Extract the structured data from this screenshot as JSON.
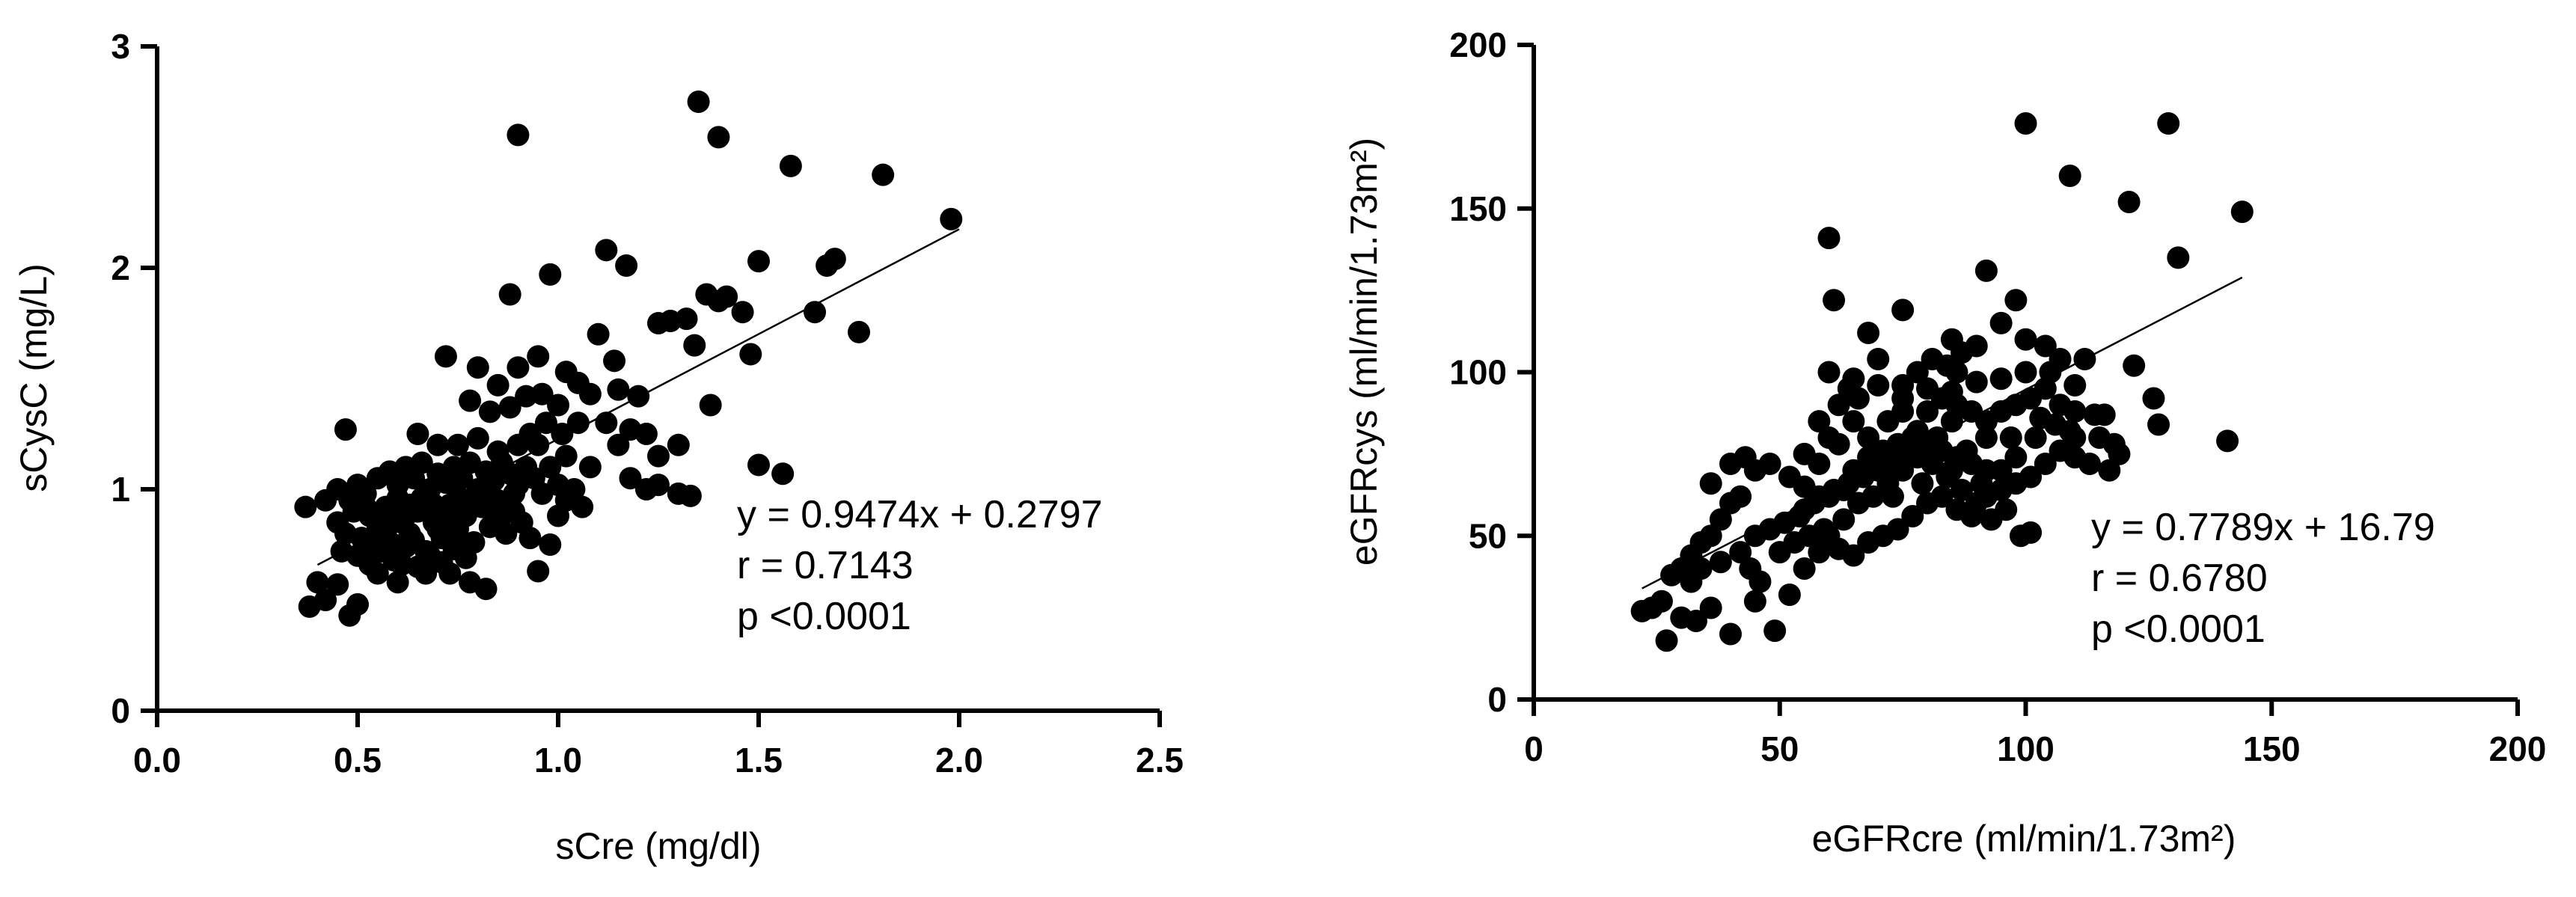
{
  "chart_data": [
    {
      "type": "scatter",
      "xlabel": "sCre (mg/dl)",
      "ylabel": "sCysC (mg/L)",
      "xlim": [
        0,
        2.5
      ],
      "ylim": [
        0,
        3
      ],
      "xticks": [
        "0.0",
        "0.5",
        "1.0",
        "1.5",
        "2.0",
        "2.5"
      ],
      "yticks": [
        "0",
        "1",
        "2",
        "3"
      ],
      "xtick_values": [
        0,
        0.5,
        1.0,
        1.5,
        2.0,
        2.5
      ],
      "ytick_values": [
        0,
        1,
        2,
        3
      ],
      "fit": {
        "slope": 0.9474,
        "intercept": 0.2797,
        "x_range": [
          0.4,
          2.0
        ]
      },
      "stats": [
        "y = 0.9474x + 0.2797",
        "r = 0.7143",
        "p <0.0001"
      ],
      "points": [
        [
          1.35,
          2.75
        ],
        [
          0.9,
          2.6
        ],
        [
          1.4,
          2.59
        ],
        [
          1.58,
          2.46
        ],
        [
          1.81,
          2.42
        ],
        [
          1.98,
          2.22
        ],
        [
          1.12,
          2.08
        ],
        [
          1.17,
          2.01
        ],
        [
          1.69,
          2.04
        ],
        [
          1.67,
          2.01
        ],
        [
          0.98,
          1.97
        ],
        [
          1.5,
          2.03
        ],
        [
          0.88,
          1.88
        ],
        [
          1.37,
          1.88
        ],
        [
          1.42,
          1.87
        ],
        [
          1.4,
          1.85
        ],
        [
          1.32,
          1.77
        ],
        [
          1.28,
          1.76
        ],
        [
          1.25,
          1.75
        ],
        [
          1.46,
          1.8
        ],
        [
          1.64,
          1.8
        ],
        [
          1.75,
          1.71
        ],
        [
          1.48,
          1.61
        ],
        [
          1.34,
          1.65
        ],
        [
          1.1,
          1.7
        ],
        [
          1.14,
          1.58
        ],
        [
          1.02,
          1.53
        ],
        [
          0.95,
          1.6
        ],
        [
          0.9,
          1.55
        ],
        [
          0.72,
          1.6
        ],
        [
          0.8,
          1.55
        ],
        [
          0.85,
          1.47
        ],
        [
          0.92,
          1.42
        ],
        [
          0.96,
          1.43
        ],
        [
          1.05,
          1.48
        ],
        [
          1.08,
          1.43
        ],
        [
          1.15,
          1.45
        ],
        [
          1.2,
          1.42
        ],
        [
          0.78,
          1.4
        ],
        [
          0.83,
          1.35
        ],
        [
          0.88,
          1.37
        ],
        [
          1.0,
          1.38
        ],
        [
          1.05,
          1.3
        ],
        [
          1.12,
          1.3
        ],
        [
          1.18,
          1.27
        ],
        [
          1.22,
          1.25
        ],
        [
          1.3,
          1.2
        ],
        [
          1.38,
          1.38
        ],
        [
          1.25,
          1.15
        ],
        [
          1.15,
          1.2
        ],
        [
          0.47,
          1.27
        ],
        [
          0.65,
          1.25
        ],
        [
          0.7,
          1.2
        ],
        [
          0.75,
          1.2
        ],
        [
          0.8,
          1.23
        ],
        [
          0.85,
          1.17
        ],
        [
          0.95,
          1.2
        ],
        [
          1.02,
          1.15
        ],
        [
          1.08,
          1.1
        ],
        [
          1.18,
          1.05
        ],
        [
          1.25,
          1.02
        ],
        [
          1.3,
          0.98
        ],
        [
          1.33,
          0.97
        ],
        [
          1.22,
          1.0
        ],
        [
          1.5,
          1.11
        ],
        [
          1.56,
          1.07
        ],
        [
          1.0,
          0.88
        ],
        [
          0.98,
          0.75
        ],
        [
          0.95,
          0.63
        ],
        [
          0.82,
          0.55
        ],
        [
          0.78,
          0.58
        ],
        [
          0.6,
          0.58
        ],
        [
          0.55,
          0.62
        ],
        [
          0.5,
          0.48
        ],
        [
          0.45,
          0.57
        ],
        [
          0.4,
          0.58
        ],
        [
          0.38,
          0.47
        ],
        [
          0.42,
          0.5
        ],
        [
          0.48,
          0.43
        ],
        [
          0.37,
          0.92
        ],
        [
          0.42,
          0.95
        ],
        [
          0.45,
          1.0
        ],
        [
          0.5,
          1.02
        ],
        [
          0.52,
          0.98
        ],
        [
          0.55,
          1.05
        ],
        [
          0.58,
          1.08
        ],
        [
          0.6,
          1.02
        ],
        [
          0.62,
          1.1
        ],
        [
          0.64,
          1.05
        ],
        [
          0.66,
          1.12
        ],
        [
          0.68,
          1.0
        ],
        [
          0.7,
          1.07
        ],
        [
          0.72,
          1.03
        ],
        [
          0.74,
          1.1
        ],
        [
          0.76,
          1.05
        ],
        [
          0.78,
          1.12
        ],
        [
          0.8,
          1.0
        ],
        [
          0.82,
          1.08
        ],
        [
          0.84,
          1.04
        ],
        [
          0.86,
          1.12
        ],
        [
          0.88,
          1.07
        ],
        [
          0.9,
          1.02
        ],
        [
          0.92,
          1.1
        ],
        [
          0.94,
          1.05
        ],
        [
          0.96,
          0.98
        ],
        [
          0.98,
          1.1
        ],
        [
          1.0,
          1.02
        ],
        [
          1.02,
          0.95
        ],
        [
          1.04,
          1.0
        ],
        [
          1.06,
          0.92
        ],
        [
          0.45,
          0.85
        ],
        [
          0.47,
          0.8
        ],
        [
          0.49,
          0.9
        ],
        [
          0.51,
          0.78
        ],
        [
          0.53,
          0.88
        ],
        [
          0.55,
          0.82
        ],
        [
          0.57,
          0.92
        ],
        [
          0.59,
          0.75
        ],
        [
          0.61,
          0.85
        ],
        [
          0.63,
          0.8
        ],
        [
          0.65,
          0.9
        ],
        [
          0.67,
          0.72
        ],
        [
          0.69,
          0.85
        ],
        [
          0.71,
          0.78
        ],
        [
          0.73,
          0.93
        ],
        [
          0.75,
          0.82
        ],
        [
          0.77,
          0.88
        ],
        [
          0.79,
          0.76
        ],
        [
          0.81,
          0.92
        ],
        [
          0.83,
          0.83
        ],
        [
          0.85,
          0.95
        ],
        [
          0.87,
          0.8
        ],
        [
          0.89,
          0.9
        ],
        [
          0.91,
          0.85
        ],
        [
          0.93,
          0.78
        ],
        [
          0.5,
          0.7
        ],
        [
          0.53,
          0.66
        ],
        [
          0.56,
          0.72
        ],
        [
          0.59,
          0.68
        ],
        [
          0.62,
          0.74
        ],
        [
          0.65,
          0.65
        ],
        [
          0.68,
          0.7
        ],
        [
          0.71,
          0.67
        ],
        [
          0.74,
          0.73
        ],
        [
          0.77,
          0.69
        ],
        [
          0.46,
          0.72
        ],
        [
          0.48,
          0.95
        ],
        [
          0.52,
          0.92
        ],
        [
          0.54,
          0.74
        ],
        [
          0.58,
          0.86
        ],
        [
          0.6,
          0.96
        ],
        [
          0.63,
          0.93
        ],
        [
          0.66,
          0.96
        ],
        [
          0.69,
          0.93
        ],
        [
          0.72,
          0.88
        ],
        [
          0.75,
          0.97
        ],
        [
          0.79,
          0.96
        ],
        [
          0.82,
          0.98
        ],
        [
          0.86,
          0.88
        ],
        [
          0.89,
          0.98
        ],
        [
          0.64,
          0.77
        ],
        [
          0.7,
          0.82
        ],
        [
          0.76,
          0.76
        ],
        [
          0.57,
          0.8
        ],
        [
          0.61,
          0.66
        ],
        [
          0.67,
          0.62
        ],
        [
          0.73,
          0.62
        ],
        [
          0.9,
          1.2
        ],
        [
          0.93,
          1.25
        ],
        [
          0.97,
          1.3
        ],
        [
          1.01,
          1.25
        ],
        [
          0.62,
          0.88
        ],
        [
          0.68,
          0.95
        ],
        [
          0.84,
          0.9
        ]
      ]
    },
    {
      "type": "scatter",
      "xlabel": "eGFRcre (ml/min/1.73m²)",
      "ylabel": "eGFRcys (ml/min/1.73m²)",
      "xlim": [
        0,
        200
      ],
      "ylim": [
        0,
        200
      ],
      "xticks": [
        "0",
        "50",
        "100",
        "150",
        "200"
      ],
      "yticks": [
        "0",
        "50",
        "100",
        "150",
        "200"
      ],
      "xtick_values": [
        0,
        50,
        100,
        150,
        200
      ],
      "ytick_values": [
        0,
        50,
        100,
        150,
        200
      ],
      "fit": {
        "slope": 0.7789,
        "intercept": 16.79,
        "x_range": [
          22,
          144
        ]
      },
      "stats": [
        "y = 0.7789x + 16.79",
        "r = 0.6780",
        "p <0.0001"
      ],
      "points": [
        [
          100,
          176
        ],
        [
          129,
          176
        ],
        [
          109,
          160
        ],
        [
          121,
          152
        ],
        [
          144,
          149
        ],
        [
          60,
          141
        ],
        [
          131,
          135
        ],
        [
          92,
          131
        ],
        [
          61,
          122
        ],
        [
          98,
          122
        ],
        [
          75,
          119
        ],
        [
          112,
          104
        ],
        [
          95,
          115
        ],
        [
          68,
          112
        ],
        [
          85,
          110
        ],
        [
          90,
          108
        ],
        [
          100,
          110
        ],
        [
          104,
          108
        ],
        [
          107,
          104
        ],
        [
          86,
          100
        ],
        [
          60,
          100
        ],
        [
          65,
          98
        ],
        [
          70,
          96
        ],
        [
          75,
          96
        ],
        [
          80,
          95
        ],
        [
          85,
          94
        ],
        [
          90,
          97
        ],
        [
          95,
          98
        ],
        [
          100,
          100
        ],
        [
          105,
          100
        ],
        [
          110,
          96
        ],
        [
          114,
          87
        ],
        [
          116,
          87
        ],
        [
          122,
          102
        ],
        [
          126,
          92
        ],
        [
          127,
          84
        ],
        [
          141,
          79
        ],
        [
          119,
          75
        ],
        [
          117,
          70
        ],
        [
          113,
          72
        ],
        [
          110,
          80
        ],
        [
          106,
          84
        ],
        [
          102,
          80
        ],
        [
          98,
          74
        ],
        [
          95,
          70
        ],
        [
          92,
          80
        ],
        [
          88,
          76
        ],
        [
          85,
          85
        ],
        [
          82,
          80
        ],
        [
          78,
          82
        ],
        [
          75,
          88
        ],
        [
          72,
          85
        ],
        [
          68,
          80
        ],
        [
          65,
          85
        ],
        [
          62,
          78
        ],
        [
          58,
          72
        ],
        [
          55,
          75
        ],
        [
          52,
          68
        ],
        [
          48,
          72
        ],
        [
          45,
          70
        ],
        [
          42,
          62
        ],
        [
          40,
          60
        ],
        [
          38,
          55
        ],
        [
          36,
          50
        ],
        [
          34,
          48
        ],
        [
          32,
          44
        ],
        [
          30,
          40
        ],
        [
          28,
          38
        ],
        [
          26,
          30
        ],
        [
          24,
          28
        ],
        [
          22,
          27
        ],
        [
          27,
          18
        ],
        [
          30,
          25
        ],
        [
          33,
          24
        ],
        [
          36,
          28
        ],
        [
          40,
          20
        ],
        [
          45,
          30
        ],
        [
          49,
          21
        ],
        [
          52,
          32
        ],
        [
          55,
          40
        ],
        [
          58,
          45
        ],
        [
          60,
          50
        ],
        [
          63,
          55
        ],
        [
          66,
          60
        ],
        [
          69,
          62
        ],
        [
          72,
          66
        ],
        [
          75,
          70
        ],
        [
          78,
          74
        ],
        [
          81,
          72
        ],
        [
          84,
          68
        ],
        [
          87,
          64
        ],
        [
          90,
          60
        ],
        [
          93,
          55
        ],
        [
          96,
          58
        ],
        [
          99,
          50
        ],
        [
          101,
          51
        ],
        [
          80,
          88
        ],
        [
          83,
          92
        ],
        [
          86,
          90
        ],
        [
          89,
          88
        ],
        [
          92,
          85
        ],
        [
          95,
          88
        ],
        [
          98,
          90
        ],
        [
          101,
          92
        ],
        [
          104,
          95
        ],
        [
          107,
          90
        ],
        [
          110,
          88
        ],
        [
          65,
          70
        ],
        [
          68,
          74
        ],
        [
          71,
          76
        ],
        [
          74,
          78
        ],
        [
          77,
          80
        ],
        [
          80,
          78
        ],
        [
          83,
          76
        ],
        [
          86,
          74
        ],
        [
          89,
          72
        ],
        [
          92,
          70
        ],
        [
          55,
          58
        ],
        [
          58,
          62
        ],
        [
          61,
          64
        ],
        [
          64,
          66
        ],
        [
          67,
          68
        ],
        [
          70,
          70
        ],
        [
          73,
          72
        ],
        [
          76,
          74
        ],
        [
          79,
          76
        ],
        [
          82,
          78
        ],
        [
          45,
          50
        ],
        [
          48,
          52
        ],
        [
          51,
          54
        ],
        [
          54,
          56
        ],
        [
          57,
          60
        ],
        [
          60,
          62
        ],
        [
          63,
          64
        ],
        [
          42,
          45
        ],
        [
          44,
          40
        ],
        [
          46,
          36
        ],
        [
          50,
          45
        ],
        [
          53,
          48
        ],
        [
          56,
          50
        ],
        [
          59,
          52
        ],
        [
          62,
          46
        ],
        [
          65,
          44
        ],
        [
          68,
          48
        ],
        [
          71,
          50
        ],
        [
          74,
          52
        ],
        [
          77,
          56
        ],
        [
          80,
          60
        ],
        [
          83,
          62
        ],
        [
          86,
          58
        ],
        [
          89,
          56
        ],
        [
          92,
          62
        ],
        [
          95,
          64
        ],
        [
          98,
          66
        ],
        [
          101,
          68
        ],
        [
          104,
          72
        ],
        [
          107,
          76
        ],
        [
          110,
          74
        ],
        [
          75,
          92
        ],
        [
          78,
          100
        ],
        [
          81,
          104
        ],
        [
          84,
          102
        ],
        [
          87,
          106
        ],
        [
          70,
          104
        ],
        [
          66,
          92
        ],
        [
          62,
          90
        ],
        [
          58,
          85
        ],
        [
          40,
          72
        ],
        [
          43,
          74
        ],
        [
          36,
          66
        ],
        [
          34,
          40
        ],
        [
          38,
          42
        ],
        [
          32,
          36
        ],
        [
          55,
          65
        ],
        [
          60,
          80
        ],
        [
          64,
          95
        ],
        [
          73,
          62
        ],
        [
          79,
          66
        ],
        [
          85,
          70
        ],
        [
          91,
          66
        ],
        [
          97,
          80
        ],
        [
          103,
          86
        ],
        [
          109,
          82
        ],
        [
          115,
          80
        ],
        [
          118,
          78
        ]
      ]
    }
  ]
}
